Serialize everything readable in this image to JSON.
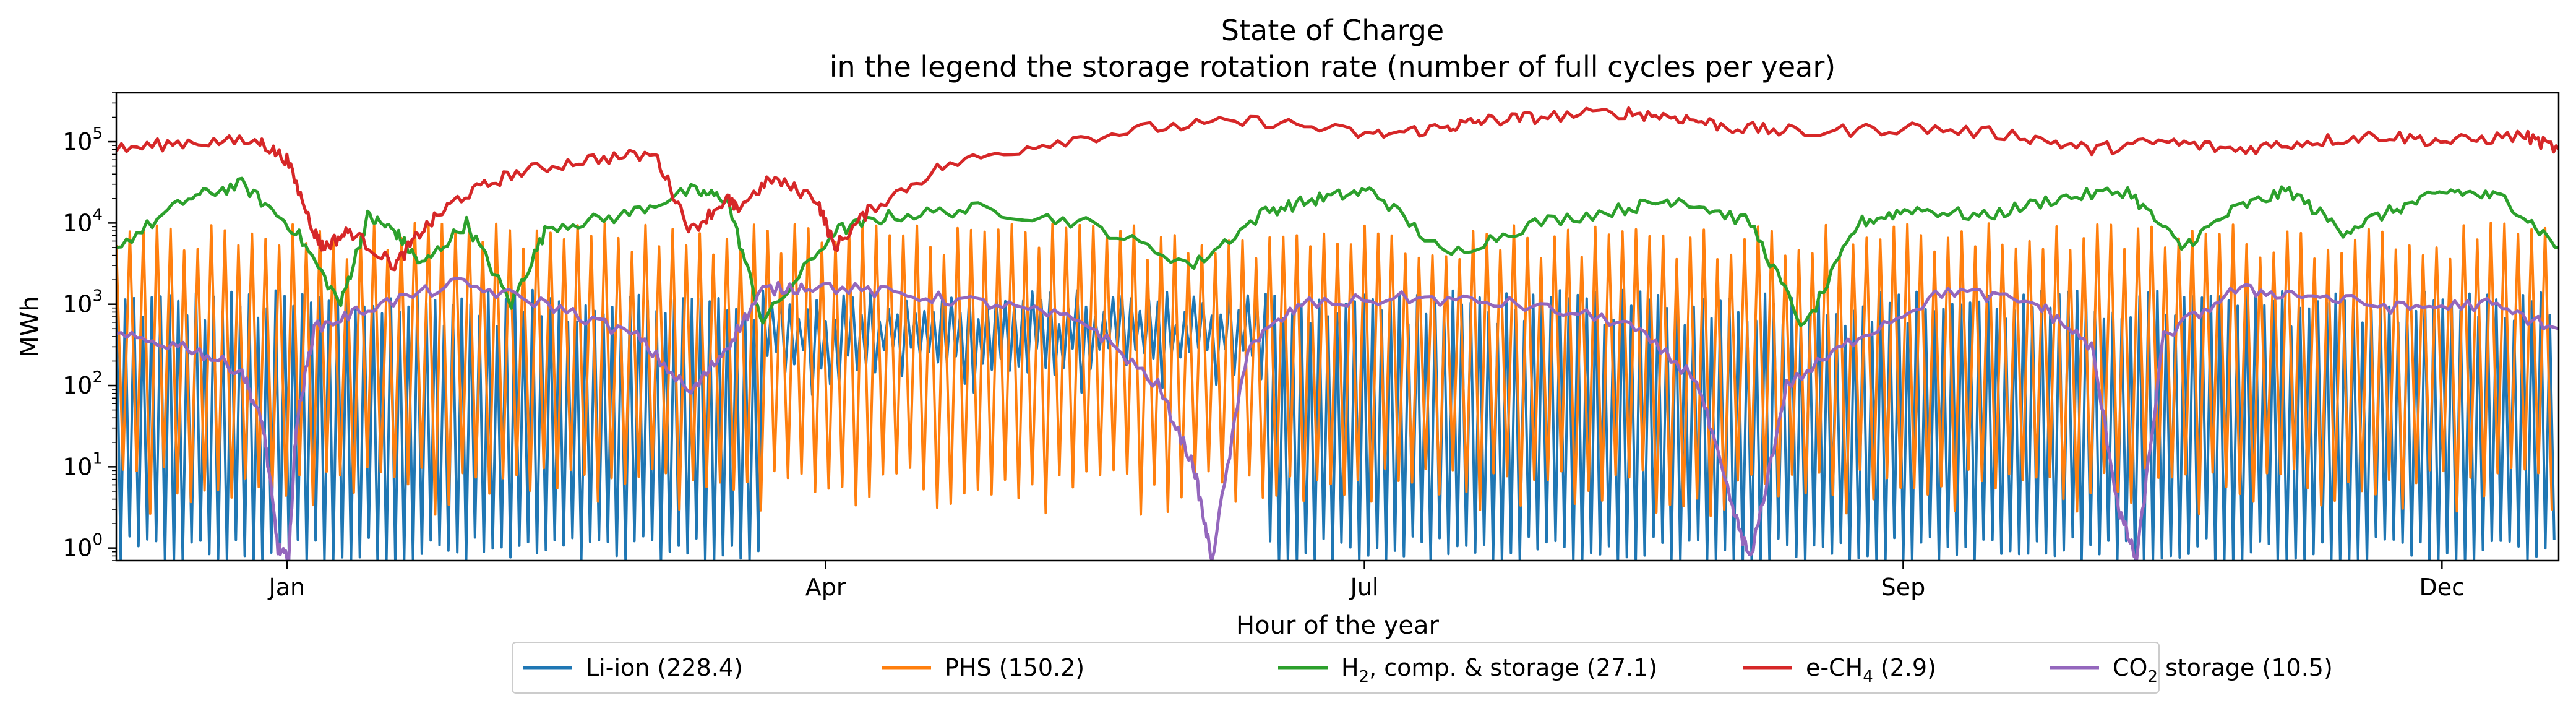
{
  "chart_data": {
    "type": "line",
    "title": "State of Charge",
    "subtitle": "in the legend the storage rotation rate (number of full cycles per year)",
    "xlabel": "Hour of the year",
    "ylabel": "MWh",
    "yscale": "log",
    "ylim": [
      0.7,
      400000
    ],
    "x_ticks": [
      {
        "label": "Jan",
        "month_pos": 0.55
      },
      {
        "label": "Apr",
        "month_pos": 3.55
      },
      {
        "label": "Jul",
        "month_pos": 6.55
      },
      {
        "label": "Sep",
        "month_pos": 9.55
      },
      {
        "label": "Dec",
        "month_pos": 12.55
      }
    ],
    "y_ticks": [
      {
        "base": "10",
        "exp": "0",
        "value": 1
      },
      {
        "base": "10",
        "exp": "1",
        "value": 10
      },
      {
        "base": "10",
        "exp": "2",
        "value": 100
      },
      {
        "base": "10",
        "exp": "3",
        "value": 1000
      },
      {
        "base": "10",
        "exp": "4",
        "value": 10000
      },
      {
        "base": "10",
        "exp": "5",
        "value": 100000
      }
    ],
    "grid": false,
    "legend_position": "bottom-center",
    "series": [
      {
        "name": "Li-ion (228.4)",
        "name_parts": [
          "Li-ion (228.4)"
        ],
        "color": "#1f77b4",
        "style": "oscillating",
        "cycles_per_year": 228.4,
        "capacity": 1500,
        "segments": [
          {
            "x": [
              -0.4,
              3.2
            ],
            "low": 0.7
          },
          {
            "x": [
              3.2,
              6.0
            ],
            "low": 150
          },
          {
            "x": [
              6.0,
              13.2
            ],
            "low": 0.7
          }
        ]
      },
      {
        "name": "PHS (150.2)",
        "name_parts": [
          "PHS (150.2)"
        ],
        "color": "#ff7f0e",
        "style": "oscillating",
        "cycles_per_year": 150.2,
        "capacity": 10000,
        "segments": [
          {
            "x": [
              -0.4,
              13.2
            ],
            "low": 5
          }
        ]
      },
      {
        "name": "H2, comp. & storage (27.1)",
        "name_parts": [
          "H",
          "2",
          ", comp. & storage (27.1)"
        ],
        "color": "#2ca02c",
        "style": "line",
        "x": [
          -0.4,
          0.0,
          0.3,
          0.6,
          0.85,
          1.0,
          1.15,
          1.3,
          1.55,
          1.8,
          2.0,
          2.4,
          2.8,
          3.0,
          3.2,
          3.6,
          3.9,
          4.4,
          5.0,
          5.6,
          6.0,
          6.3,
          6.6,
          7.0,
          7.5,
          8.0,
          8.3,
          8.7,
          9.0,
          9.3,
          9.6,
          10.0,
          10.4,
          10.8,
          11.1,
          11.4,
          11.7,
          12.0,
          12.3,
          12.6,
          12.9,
          13.2
        ],
        "y": [
          5000,
          20000,
          30000,
          8000,
          1000,
          12000,
          8000,
          3000,
          10000,
          1000,
          9000,
          12000,
          25000,
          20000,
          600,
          8000,
          12000,
          15000,
          10000,
          3000,
          14000,
          20000,
          25000,
          4000,
          10000,
          15000,
          20000,
          10000,
          500,
          10000,
          15000,
          12000,
          20000,
          25000,
          5000,
          15000,
          25000,
          8000,
          15000,
          25000,
          20000,
          5000
        ]
      },
      {
        "name": "e-CH4 (2.9)",
        "name_parts": [
          "e-CH",
          "4",
          " (2.9)"
        ],
        "color": "#d62728",
        "style": "line",
        "x": [
          -0.4,
          0.0,
          0.4,
          0.55,
          0.7,
          0.75,
          0.9,
          1.15,
          1.3,
          1.5,
          1.8,
          2.2,
          2.6,
          2.8,
          3.0,
          3.05,
          3.25,
          3.5,
          3.6,
          3.8,
          4.2,
          4.8,
          5.4,
          6.0,
          6.6,
          7.0,
          7.2,
          7.5,
          8.0,
          8.3,
          8.6,
          9.0,
          9.6,
          10.2,
          10.6,
          11.0,
          11.4,
          11.8,
          12.2,
          12.6,
          13.0,
          13.2
        ],
        "y": [
          80000,
          100000,
          100000,
          60000,
          8000,
          5000,
          8000,
          3000,
          8000,
          20000,
          40000,
          60000,
          70000,
          8000,
          20000,
          15000,
          35000,
          20000,
          5000,
          15000,
          50000,
          100000,
          150000,
          180000,
          120000,
          150000,
          180000,
          200000,
          230000,
          200000,
          150000,
          130000,
          150000,
          120000,
          80000,
          100000,
          80000,
          100000,
          120000,
          100000,
          120000,
          80000
        ]
      },
      {
        "name": "CO2 storage (10.5)",
        "name_parts": [
          "CO",
          "2",
          " storage (10.5)"
        ],
        "color": "#9467bd",
        "style": "line",
        "x": [
          -0.4,
          0.0,
          0.3,
          0.42,
          0.5,
          0.56,
          0.6,
          0.7,
          1.0,
          1.5,
          2.0,
          2.5,
          2.8,
          3.0,
          3.2,
          3.5,
          4.0,
          4.5,
          5.0,
          5.4,
          5.6,
          5.7,
          5.9,
          6.2,
          6.8,
          7.4,
          8.0,
          8.4,
          8.6,
          8.7,
          8.9,
          9.3,
          9.8,
          10.3,
          10.6,
          10.75,
          10.85,
          11.0,
          11.4,
          11.8,
          12.3,
          12.8,
          13.2
        ],
        "y": [
          400,
          300,
          150,
          30,
          1,
          0.7,
          30,
          500,
          900,
          1800,
          1000,
          400,
          80,
          300,
          1500,
          1700,
          1300,
          1000,
          600,
          100,
          10,
          0.7,
          300,
          1000,
          1200,
          1000,
          600,
          120,
          3,
          0.7,
          100,
          400,
          1500,
          1000,
          300,
          3,
          0.7,
          400,
          1500,
          1300,
          900,
          1000,
          500
        ]
      }
    ]
  }
}
